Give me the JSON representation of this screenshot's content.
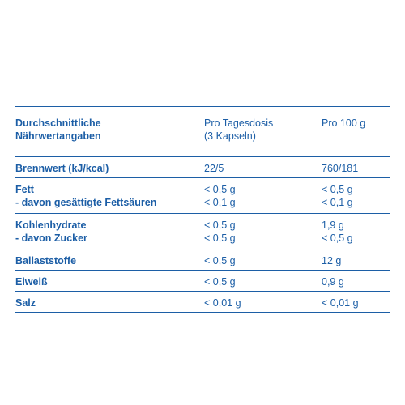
{
  "header": {
    "col1": [
      "Durchschnittliche",
      "Nährwertangaben"
    ],
    "col2": [
      "Pro Tagesdosis",
      "(3 Kapseln)"
    ],
    "col3": [
      "Pro 100 g"
    ]
  },
  "rows": [
    {
      "label": [
        "Brennwert (kJ/kcal)"
      ],
      "per_dose": [
        "22/5"
      ],
      "per_100g": [
        "760/181"
      ]
    },
    {
      "label": [
        "Fett",
        "- davon gesättigte Fettsäuren"
      ],
      "per_dose": [
        "< 0,5 g",
        "< 0,1 g"
      ],
      "per_100g": [
        "< 0,5 g",
        "< 0,1 g"
      ]
    },
    {
      "label": [
        "Kohlenhydrate",
        "- davon Zucker"
      ],
      "per_dose": [
        "< 0,5 g",
        "< 0,5 g"
      ],
      "per_100g": [
        "1,9 g",
        "< 0,5 g"
      ]
    },
    {
      "label": [
        "Ballaststoffe"
      ],
      "per_dose": [
        "< 0,5 g"
      ],
      "per_100g": [
        "12 g"
      ]
    },
    {
      "label": [
        "Eiweiß"
      ],
      "per_dose": [
        "< 0,5 g"
      ],
      "per_100g": [
        "0,9 g"
      ]
    },
    {
      "label": [
        "Salz"
      ],
      "per_dose": [
        "< 0,01 g"
      ],
      "per_100g": [
        "< 0,01 g"
      ]
    }
  ],
  "colors": {
    "text": "#1c5ea6",
    "rule": "#1c5ea6",
    "background": "#ffffff"
  }
}
